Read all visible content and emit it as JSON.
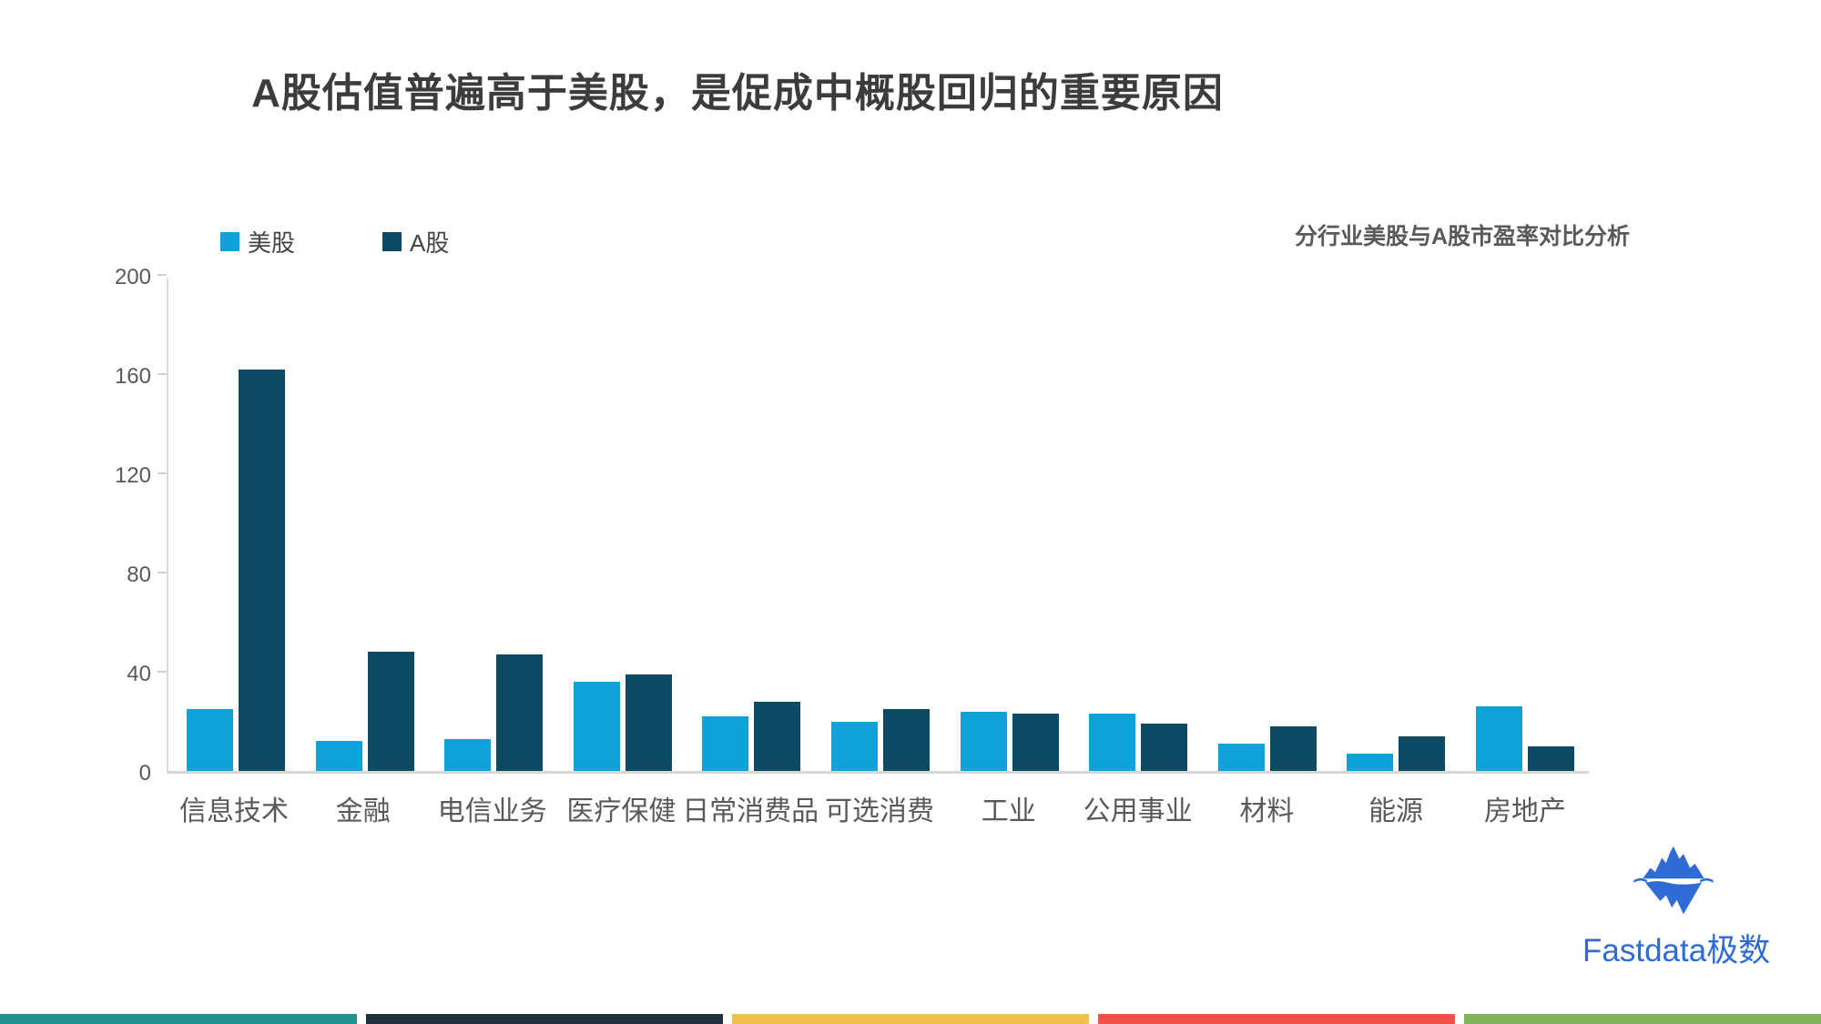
{
  "title": "A股估值普遍高于美股，是促成中概股回归的重要原因",
  "subtitle": "分行业美股与A股市盈率对比分析",
  "brand": {
    "name": "Fastdata极数",
    "color": "#2e6bd4"
  },
  "footer_colors": [
    "#1f938e",
    "#212f3d",
    "#f1c14e",
    "#f4514b",
    "#80b55b"
  ],
  "chart_data": {
    "type": "bar",
    "categories": [
      "信息技术",
      "金融",
      "电信业务",
      "医疗保健",
      "日常消费品",
      "可选消费",
      "工业",
      "公用事业",
      "材料",
      "能源",
      "房地产"
    ],
    "series": [
      {
        "name": "美股",
        "color": "#0da2d9",
        "values": [
          25,
          12,
          13,
          36,
          22,
          20,
          24,
          23,
          11,
          7,
          26
        ]
      },
      {
        "name": "A股",
        "color": "#0c4a63",
        "values": [
          162,
          48,
          47,
          39,
          28,
          25,
          23,
          19,
          18,
          14,
          10
        ]
      }
    ],
    "title": "分行业美股与A股市盈率对比分析",
    "xlabel": "",
    "ylabel": "",
    "ylim": [
      0,
      200
    ],
    "yticks": [
      0,
      40,
      80,
      120,
      160,
      200
    ],
    "grid": false,
    "legend_position": "top-left",
    "axis_color": "#d9d9d9",
    "label_color": "#595959"
  }
}
